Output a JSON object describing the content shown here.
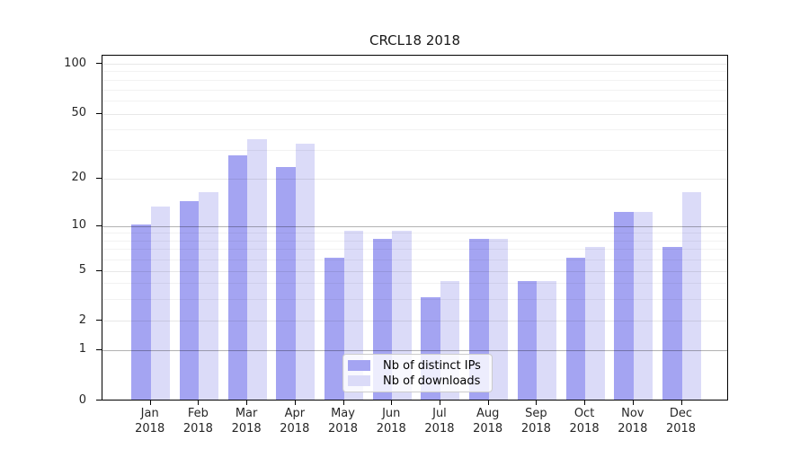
{
  "title": "CRCL18 2018",
  "chart_data": {
    "type": "bar",
    "title": "CRCL18 2018",
    "categories": [
      "Jan 2018",
      "Feb 2018",
      "Mar 2018",
      "Apr 2018",
      "May 2018",
      "Jun 2018",
      "Jul 2018",
      "Aug 2018",
      "Sep 2018",
      "Oct 2018",
      "Nov 2018",
      "Dec 2018"
    ],
    "month_labels": [
      "Jan",
      "Feb",
      "Mar",
      "Apr",
      "May",
      "Jun",
      "Jul",
      "Aug",
      "Sep",
      "Oct",
      "Nov",
      "Dec"
    ],
    "year_label": "2018",
    "series": [
      {
        "name": "Nb of distinct IPs",
        "color": "#a4a4f2",
        "values": [
          10,
          14,
          27,
          23,
          6,
          8,
          3,
          8,
          4,
          6,
          12,
          7
        ]
      },
      {
        "name": "Nb of downloads",
        "color": "#dbdbf8",
        "values": [
          13,
          16,
          34,
          32,
          9,
          9,
          4,
          8,
          4,
          7,
          12,
          16
        ]
      }
    ],
    "xlabel": "",
    "ylabel": "",
    "yscale": "symlog",
    "ylim": [
      0,
      100
    ],
    "yticks": [
      100,
      50,
      20,
      10,
      5,
      2,
      1,
      0
    ],
    "minor_yticks": [
      90,
      80,
      70,
      60,
      40,
      30,
      9,
      8,
      7,
      6,
      4,
      3
    ],
    "major_grid_yticks": [
      10,
      1
    ],
    "grid": true,
    "legend_position": "lower-center"
  },
  "legend": {
    "entries": [
      {
        "label": "Nb of distinct IPs",
        "color": "#a4a4f2"
      },
      {
        "label": "Nb of downloads",
        "color": "#dbdbf8"
      }
    ]
  },
  "colors": {
    "background": "#ffffff",
    "bar_dark": "#a4a4f2",
    "bar_light": "#dbdbf8",
    "spine": "#000000",
    "tick_label": "#262626"
  }
}
